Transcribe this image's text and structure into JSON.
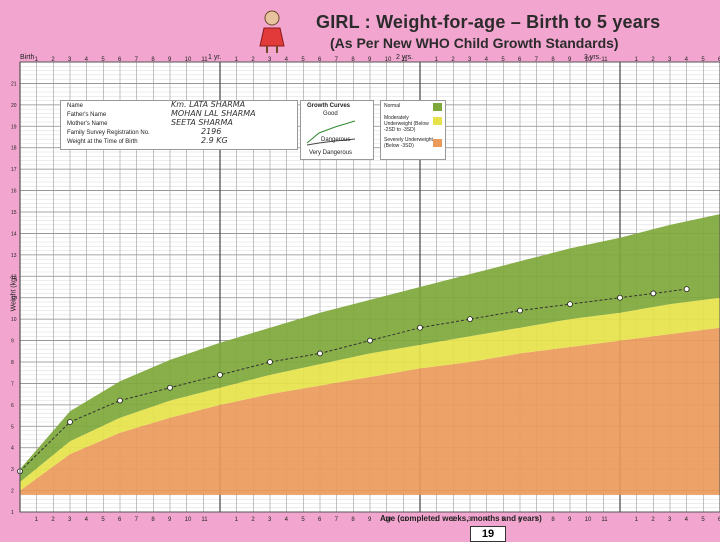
{
  "header": {
    "title": "GIRL : Weight-for-age – Birth to 5 years",
    "subtitle": "(As Per New WHO Child Growth Standards)",
    "year_labels": [
      "Birth",
      "1 yr.",
      "2 yrs.",
      "3 yrs."
    ]
  },
  "info": {
    "labels": [
      "Name",
      "Father's Name",
      "Mother's Name",
      "Family Survey Registration No.",
      "Weight at the Time of Birth"
    ],
    "values": [
      "Km. LATA SHARMA",
      "MOHAN LAL SHARMA",
      "SEETA SHARMA",
      "2196",
      "2.9 KG"
    ]
  },
  "growth_curves": {
    "title": "Growth Curves",
    "good": "Good",
    "dangerous": "Dangerous",
    "very_dangerous": "Very Dangerous"
  },
  "legend": [
    {
      "label": "Normal",
      "color": "#7ea83a"
    },
    {
      "label": "Moderately Underweight (Below -2SD to -3SD)",
      "color": "#e6e34a"
    },
    {
      "label": "Severely Underweight (Below -3SD)",
      "color": "#ec9a5b"
    }
  ],
  "page_number": "19",
  "chart_data": {
    "type": "area",
    "title": "GIRL : Weight-for-age – Birth to 5 years",
    "xlabel": "Age (completed weeks, months and years)",
    "ylabel": "Weight (kg)",
    "xlim": [
      0,
      42
    ],
    "ylim": [
      1,
      22
    ],
    "x_months": [
      0,
      3,
      6,
      9,
      12,
      15,
      18,
      21,
      24,
      27,
      30,
      33,
      36,
      39,
      42
    ],
    "bands": [
      {
        "name": "Severely Underweight (Below -3SD)",
        "color": "#ec9a5b",
        "lower": [
          1.8,
          1.8,
          1.8,
          1.8,
          1.8,
          1.8,
          1.8,
          1.8,
          1.8,
          1.8,
          1.8,
          1.8,
          1.8,
          1.8,
          1.8
        ],
        "upper": [
          2.0,
          3.7,
          4.7,
          5.4,
          6.0,
          6.5,
          6.9,
          7.3,
          7.7,
          8.0,
          8.4,
          8.7,
          9.0,
          9.3,
          9.6
        ]
      },
      {
        "name": "Moderately Underweight (Below -2SD to -3SD)",
        "color": "#e6e34a",
        "lower": [
          2.0,
          3.7,
          4.7,
          5.4,
          6.0,
          6.5,
          6.9,
          7.3,
          7.7,
          8.0,
          8.4,
          8.7,
          9.0,
          9.3,
          9.6
        ],
        "upper": [
          2.4,
          4.3,
          5.4,
          6.2,
          6.8,
          7.4,
          7.9,
          8.4,
          8.8,
          9.2,
          9.6,
          10.0,
          10.3,
          10.7,
          11.0
        ]
      },
      {
        "name": "Normal",
        "color": "#7ea83a",
        "lower": [
          2.4,
          4.3,
          5.4,
          6.2,
          6.8,
          7.4,
          7.9,
          8.4,
          8.8,
          9.2,
          9.6,
          10.0,
          10.3,
          10.7,
          11.0
        ],
        "upper": [
          3.0,
          5.7,
          7.1,
          8.1,
          8.9,
          9.6,
          10.3,
          10.9,
          11.5,
          12.1,
          12.7,
          13.3,
          13.8,
          14.4,
          14.9
        ]
      }
    ],
    "child_points": {
      "name": "Km. LATA SHARMA",
      "x": [
        0,
        3,
        6,
        9,
        12,
        15,
        18,
        21,
        24,
        27,
        30,
        33,
        36,
        38,
        40
      ],
      "y": [
        2.9,
        5.2,
        6.2,
        6.8,
        7.4,
        8.0,
        8.4,
        9.0,
        9.6,
        10.0,
        10.4,
        10.7,
        11.0,
        11.2,
        11.4
      ]
    },
    "x_tick_labels": [
      "1",
      "2",
      "3",
      "4",
      "5",
      "6",
      "7",
      "8",
      "9",
      "10",
      "11"
    ],
    "y_tick_labels": [
      "1",
      "2",
      "3",
      "4",
      "5",
      "6",
      "7",
      "8",
      "9",
      "10",
      "11",
      "12",
      "13",
      "14",
      "15",
      "16",
      "17",
      "18",
      "19",
      "20",
      "21"
    ]
  }
}
